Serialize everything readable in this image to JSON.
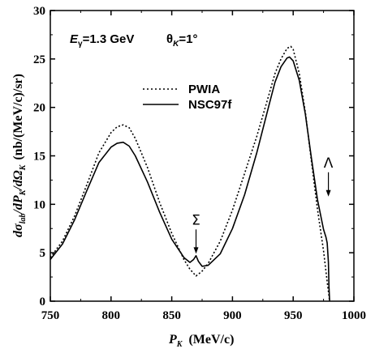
{
  "chart_data": {
    "type": "line",
    "title": "",
    "xlabel": "P_K (MeV/c)",
    "xlabel_parts": {
      "main": "P",
      "sub": "K",
      "unit": "(MeV/c)"
    },
    "ylabel": "dσ_lab/dP_K/dΩ_K (nb/(MeV/c)/sr)",
    "ylabel_parts": {
      "d1": "dσ",
      "sub1": "lab",
      "d2": "/dP",
      "sub2": "K",
      "d3": "/dΩ",
      "sub3": "K",
      "unit": "(nb/(MeV/c)/sr)"
    },
    "xlim": [
      750,
      1000
    ],
    "ylim": [
      0,
      30
    ],
    "xticks": [
      750,
      800,
      850,
      900,
      950,
      1000
    ],
    "yticks": [
      0,
      5,
      10,
      15,
      20,
      25,
      30
    ],
    "grid": false,
    "legend_position": "upper-middle",
    "annotation": {
      "energy_label": "E",
      "energy_sub": "γ",
      "energy_value": "=1.3 GeV",
      "angle_label": "θ",
      "angle_sub": "K",
      "angle_value": "=1°"
    },
    "markers": [
      {
        "label": "Σ",
        "x": 870,
        "y": 4.9
      },
      {
        "label": "Λ",
        "x": 979,
        "y": 10.8
      }
    ],
    "series": [
      {
        "name": "PWIA",
        "style": "dotted",
        "x": [
          750,
          760,
          770,
          780,
          790,
          800,
          805,
          810,
          815,
          820,
          830,
          840,
          850,
          860,
          865,
          870,
          875,
          880,
          890,
          900,
          910,
          920,
          930,
          935,
          940,
          945,
          948,
          950,
          955,
          960,
          965,
          970,
          975,
          978,
          980
        ],
        "y": [
          4.5,
          6.2,
          8.8,
          12.0,
          15.3,
          17.4,
          18.0,
          18.2,
          17.9,
          16.8,
          13.8,
          10.2,
          7.0,
          4.3,
          3.3,
          2.6,
          3.1,
          3.9,
          6.2,
          9.4,
          13.2,
          17.0,
          21.3,
          23.5,
          25.0,
          26.1,
          26.3,
          26.0,
          23.5,
          19.5,
          14.5,
          9.5,
          5.2,
          2.0,
          0
        ]
      },
      {
        "name": "NSC97f",
        "style": "solid",
        "x": [
          750,
          760,
          770,
          780,
          790,
          800,
          805,
          810,
          815,
          820,
          830,
          840,
          850,
          860,
          865,
          868,
          870,
          872,
          875,
          880,
          890,
          900,
          910,
          920,
          930,
          935,
          940,
          945,
          947,
          950,
          955,
          960,
          965,
          970,
          975,
          977,
          978,
          979,
          979.5,
          980
        ],
        "y": [
          4.3,
          5.9,
          8.4,
          11.4,
          14.3,
          15.9,
          16.3,
          16.4,
          16.0,
          15.0,
          12.3,
          9.2,
          6.4,
          4.5,
          4.0,
          4.3,
          4.7,
          4.1,
          3.6,
          3.7,
          4.9,
          7.5,
          11.0,
          15.3,
          20.2,
          22.6,
          24.2,
          25.1,
          25.2,
          24.8,
          22.8,
          19.3,
          14.8,
          10.5,
          7.4,
          6.6,
          6.0,
          4.0,
          1.5,
          0
        ]
      }
    ]
  }
}
